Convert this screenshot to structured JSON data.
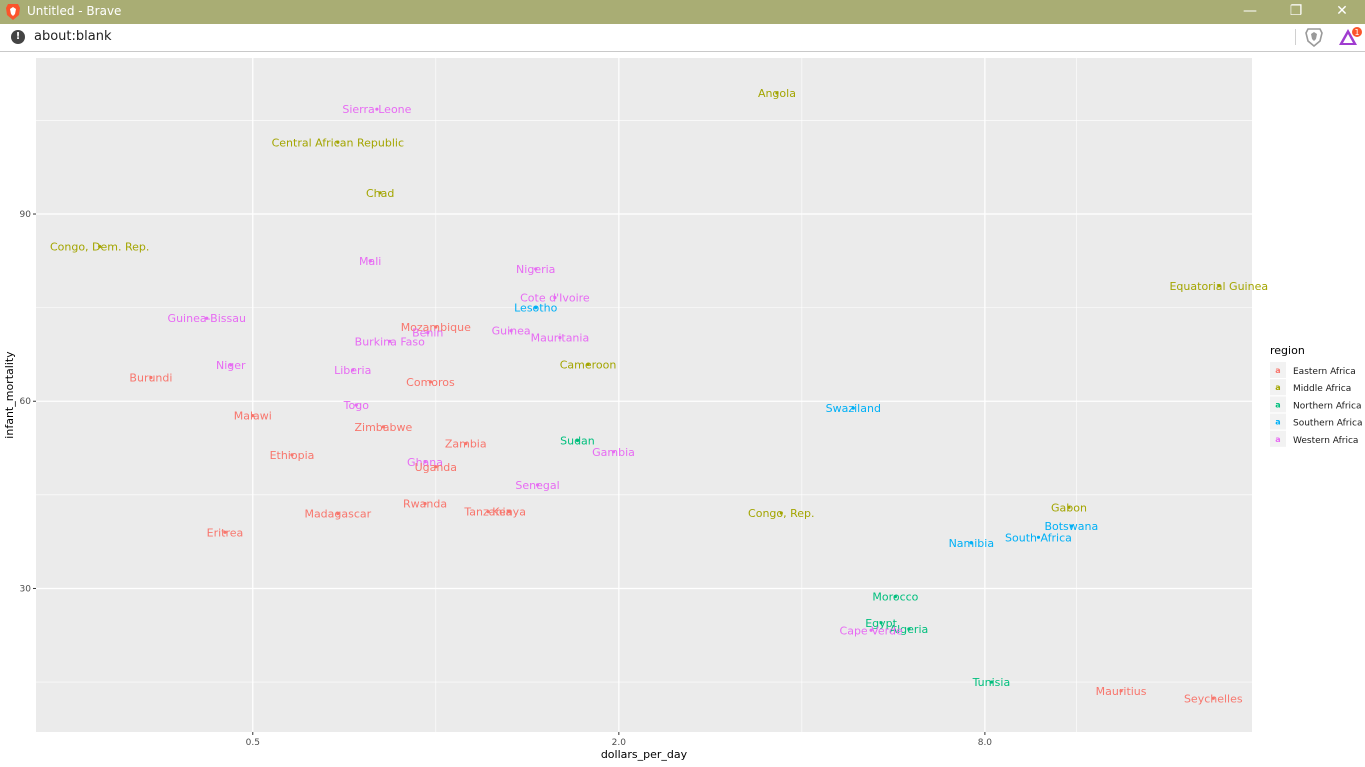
{
  "window": {
    "title": "Untitled - Brave",
    "controls": {
      "minimize": "—",
      "restore": "❐",
      "close": "✕"
    }
  },
  "addressbar": {
    "url": "about:blank",
    "info_icon": "!"
  },
  "colors": {
    "panel": "#ebebeb",
    "grid": "#ffffff",
    "Eastern Africa": "#F8766D",
    "Middle Africa": "#A3A500",
    "Northern Africa": "#00BF7D",
    "Southern Africa": "#00B0F6",
    "Western Africa": "#E76BF3"
  },
  "chart_data": {
    "type": "scatter",
    "xlabel": "dollars_per_day",
    "ylabel": "infant_mortality",
    "x_scale": "log2",
    "xlim": [
      0.22,
      22
    ],
    "ylim": [
      7,
      115
    ],
    "x_ticks": [
      0.5,
      2.0,
      8.0
    ],
    "x_tick_labels": [
      "0.5",
      "2.0",
      "8.0"
    ],
    "y_ticks": [
      30,
      60,
      90
    ],
    "y_tick_labels": [
      "30",
      "60",
      "90"
    ],
    "legend": {
      "title": "region",
      "placement": "right",
      "entries": [
        "Eastern Africa",
        "Middle Africa",
        "Northern Africa",
        "Southern Africa",
        "Western Africa"
      ]
    },
    "points": [
      {
        "label": "Sierra Leone",
        "region": "Western Africa",
        "x": 0.8,
        "y": 106.8
      },
      {
        "label": "Central African Republic",
        "region": "Middle Africa",
        "x": 0.69,
        "y": 101.5
      },
      {
        "label": "Chad",
        "region": "Middle Africa",
        "x": 0.81,
        "y": 93.4
      },
      {
        "label": "Angola",
        "region": "Middle Africa",
        "x": 3.64,
        "y": 109.4
      },
      {
        "label": "Congo, Dem. Rep.",
        "region": "Middle Africa",
        "x": 0.28,
        "y": 84.8
      },
      {
        "label": "Mali",
        "region": "Western Africa",
        "x": 0.78,
        "y": 82.5
      },
      {
        "label": "Nigeria",
        "region": "Western Africa",
        "x": 1.46,
        "y": 81.2
      },
      {
        "label": "Equatorial Guinea",
        "region": "Middle Africa",
        "x": 19.4,
        "y": 78.5
      },
      {
        "label": "Cote d'Ivoire",
        "region": "Western Africa",
        "x": 1.57,
        "y": 76.6
      },
      {
        "label": "Lesotho",
        "region": "Southern Africa",
        "x": 1.46,
        "y": 75.0
      },
      {
        "label": "Guinea-Bissau",
        "region": "Western Africa",
        "x": 0.42,
        "y": 73.3
      },
      {
        "label": "Mozambique",
        "region": "Eastern Africa",
        "x": 1.0,
        "y": 71.9
      },
      {
        "label": "Benin",
        "region": "Western Africa",
        "x": 0.97,
        "y": 71.0
      },
      {
        "label": "Guinea",
        "region": "Western Africa",
        "x": 1.33,
        "y": 71.3
      },
      {
        "label": "Mauritania",
        "region": "Western Africa",
        "x": 1.6,
        "y": 70.2
      },
      {
        "label": "Burkina Faso",
        "region": "Western Africa",
        "x": 0.84,
        "y": 69.6
      },
      {
        "label": "Niger",
        "region": "Western Africa",
        "x": 0.46,
        "y": 65.8
      },
      {
        "label": "Cameroon",
        "region": "Middle Africa",
        "x": 1.78,
        "y": 65.9
      },
      {
        "label": "Liberia",
        "region": "Western Africa",
        "x": 0.73,
        "y": 65.0
      },
      {
        "label": "Burundi",
        "region": "Eastern Africa",
        "x": 0.34,
        "y": 63.8
      },
      {
        "label": "Comoros",
        "region": "Eastern Africa",
        "x": 0.98,
        "y": 63.1
      },
      {
        "label": "Togo",
        "region": "Western Africa",
        "x": 0.74,
        "y": 59.4
      },
      {
        "label": "Swaziland",
        "region": "Southern Africa",
        "x": 4.86,
        "y": 58.9
      },
      {
        "label": "Malawi",
        "region": "Eastern Africa",
        "x": 0.5,
        "y": 57.7
      },
      {
        "label": "Zimbabwe",
        "region": "Eastern Africa",
        "x": 0.82,
        "y": 55.9
      },
      {
        "label": "Sudan",
        "region": "Northern Africa",
        "x": 1.71,
        "y": 53.7
      },
      {
        "label": "Zambia",
        "region": "Eastern Africa",
        "x": 1.12,
        "y": 53.2
      },
      {
        "label": "Gambia",
        "region": "Western Africa",
        "x": 1.96,
        "y": 51.9
      },
      {
        "label": "Ethiopia",
        "region": "Eastern Africa",
        "x": 0.58,
        "y": 51.4
      },
      {
        "label": "Ghana",
        "region": "Western Africa",
        "x": 0.96,
        "y": 50.3
      },
      {
        "label": "Uganda",
        "region": "Eastern Africa",
        "x": 1.0,
        "y": 49.5
      },
      {
        "label": "Senegal",
        "region": "Western Africa",
        "x": 1.47,
        "y": 46.6
      },
      {
        "label": "Rwanda",
        "region": "Eastern Africa",
        "x": 0.96,
        "y": 43.6
      },
      {
        "label": "Gabon",
        "region": "Middle Africa",
        "x": 11.0,
        "y": 43.0
      },
      {
        "label": "Tanzania",
        "region": "Eastern Africa",
        "x": 1.22,
        "y": 42.3
      },
      {
        "label": "Kenya",
        "region": "Eastern Africa",
        "x": 1.32,
        "y": 42.3
      },
      {
        "label": "Congo, Rep.",
        "region": "Middle Africa",
        "x": 3.7,
        "y": 42.1
      },
      {
        "label": "Madagascar",
        "region": "Eastern Africa",
        "x": 0.69,
        "y": 42.0
      },
      {
        "label": "Botswana",
        "region": "Southern Africa",
        "x": 11.1,
        "y": 40.0
      },
      {
        "label": "Eritrea",
        "region": "Eastern Africa",
        "x": 0.45,
        "y": 39.0
      },
      {
        "label": "South Africa",
        "region": "Southern Africa",
        "x": 9.8,
        "y": 38.2
      },
      {
        "label": "Namibia",
        "region": "Southern Africa",
        "x": 7.6,
        "y": 37.3
      },
      {
        "label": "Morocco",
        "region": "Northern Africa",
        "x": 5.7,
        "y": 28.7
      },
      {
        "label": "Egypt",
        "region": "Northern Africa",
        "x": 5.4,
        "y": 24.5
      },
      {
        "label": "Algeria",
        "region": "Northern Africa",
        "x": 6.0,
        "y": 23.5
      },
      {
        "label": "Cape Verde",
        "region": "Western Africa",
        "x": 5.2,
        "y": 23.3
      },
      {
        "label": "Tunisia",
        "region": "Northern Africa",
        "x": 8.2,
        "y": 15.0
      },
      {
        "label": "Mauritius",
        "region": "Eastern Africa",
        "x": 13.4,
        "y": 13.6
      },
      {
        "label": "Seychelles",
        "region": "Eastern Africa",
        "x": 19.0,
        "y": 12.4
      }
    ]
  }
}
